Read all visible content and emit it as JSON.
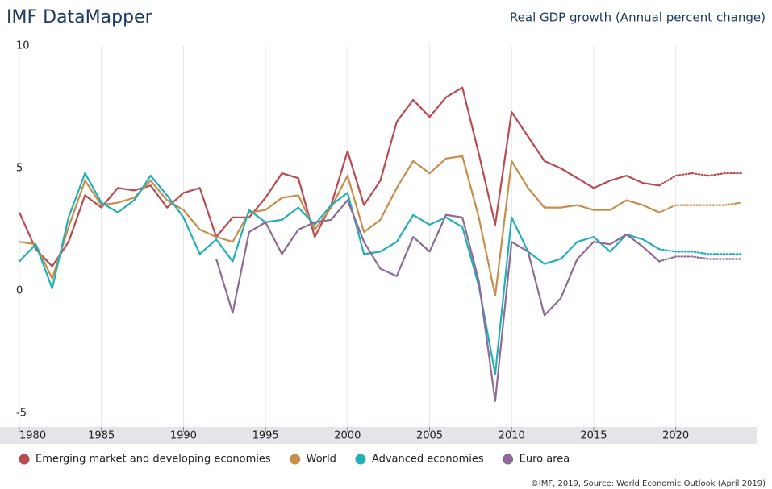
{
  "chart_data": {
    "type": "line",
    "title": "IMF DataMapper",
    "subtitle": "Real GDP growth (Annual percent change)",
    "source": "©IMF, 2019, Source: World Economic Outlook (April 2019)",
    "x": [
      1980,
      1981,
      1982,
      1983,
      1984,
      1985,
      1986,
      1987,
      1988,
      1989,
      1990,
      1991,
      1992,
      1993,
      1994,
      1995,
      1996,
      1997,
      1998,
      1999,
      2000,
      2001,
      2002,
      2003,
      2004,
      2005,
      2006,
      2007,
      2008,
      2009,
      2010,
      2011,
      2012,
      2013,
      2014,
      2015,
      2016,
      2017,
      2018,
      2019,
      2020,
      2021,
      2022,
      2023,
      2024
    ],
    "projection_from": 2019,
    "series": [
      {
        "name": "Emerging market and developing economies",
        "color": "#b94a4f",
        "values": [
          3.2,
          1.7,
          1.0,
          2.0,
          3.9,
          3.4,
          4.2,
          4.1,
          4.3,
          3.4,
          4.0,
          4.2,
          2.2,
          3.0,
          3.0,
          3.8,
          4.8,
          4.6,
          2.2,
          3.5,
          5.7,
          3.5,
          4.5,
          6.9,
          7.8,
          7.1,
          7.9,
          8.3,
          5.6,
          2.7,
          7.3,
          6.3,
          5.3,
          5.0,
          4.6,
          4.2,
          4.5,
          4.7,
          4.4,
          4.3,
          4.7,
          4.8,
          4.7,
          4.8,
          4.8
        ]
      },
      {
        "name": "World",
        "color": "#c98d4a",
        "values": [
          2.0,
          1.9,
          0.5,
          2.6,
          4.5,
          3.5,
          3.6,
          3.8,
          4.5,
          3.7,
          3.3,
          2.5,
          2.2,
          2.0,
          3.2,
          3.3,
          3.8,
          3.9,
          2.5,
          3.4,
          4.7,
          2.4,
          2.9,
          4.2,
          5.3,
          4.8,
          5.4,
          5.5,
          3.0,
          -0.2,
          5.3,
          4.2,
          3.4,
          3.4,
          3.5,
          3.3,
          3.3,
          3.7,
          3.5,
          3.2,
          3.5,
          3.5,
          3.5,
          3.5,
          3.6
        ]
      },
      {
        "name": "Advanced economies",
        "color": "#22b0b8",
        "values": [
          1.2,
          1.9,
          0.1,
          3.0,
          4.8,
          3.6,
          3.2,
          3.7,
          4.7,
          3.9,
          3.0,
          1.5,
          2.1,
          1.2,
          3.3,
          2.8,
          2.9,
          3.4,
          2.7,
          3.5,
          4.0,
          1.5,
          1.6,
          2.0,
          3.1,
          2.7,
          3.0,
          2.6,
          0.2,
          -3.4,
          3.0,
          1.6,
          1.1,
          1.3,
          2.0,
          2.2,
          1.6,
          2.3,
          2.1,
          1.7,
          1.6,
          1.6,
          1.5,
          1.5,
          1.5
        ]
      },
      {
        "name": "Euro area",
        "color": "#8e6a96",
        "values": [
          null,
          null,
          null,
          null,
          null,
          null,
          null,
          null,
          null,
          null,
          null,
          null,
          1.3,
          -0.9,
          2.4,
          2.8,
          1.5,
          2.5,
          2.8,
          2.9,
          3.7,
          2.0,
          0.9,
          0.6,
          2.2,
          1.6,
          3.1,
          3.0,
          0.4,
          -4.5,
          2.0,
          1.6,
          -1.0,
          -0.3,
          1.3,
          2.0,
          1.9,
          2.3,
          1.8,
          1.2,
          1.4,
          1.4,
          1.3,
          1.3,
          1.3
        ]
      }
    ],
    "xlim": [
      1980,
      2024
    ],
    "xticks": [
      1980,
      1985,
      1990,
      1995,
      2000,
      2005,
      2010,
      2015,
      2020
    ],
    "ylim": [
      -5,
      10
    ],
    "yticks": [
      -5,
      0,
      5,
      10
    ],
    "grid": true
  }
}
